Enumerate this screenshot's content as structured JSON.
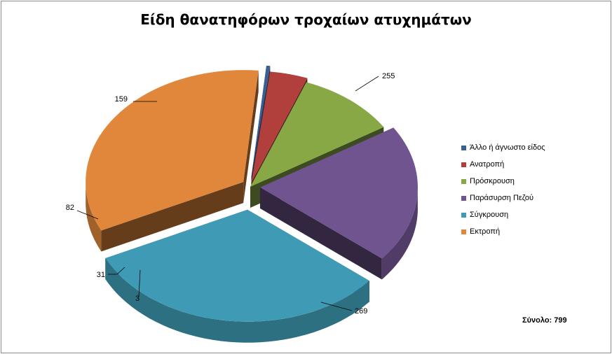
{
  "chart_data": {
    "type": "pie",
    "title": "Είδη θανατηφόρων τροχαίων ατυχημάτων",
    "categories": [
      "Άλλο ή άγνωστο είδος",
      "Ανατροπή",
      "Πρόσκρουση",
      "Παράσυρση Πεζού",
      "Σύγκρουση",
      "Εκτροπή"
    ],
    "values": [
      3,
      31,
      82,
      159,
      255,
      269
    ],
    "colors": [
      "#3b5f92",
      "#b1403d",
      "#88a846",
      "#6f548f",
      "#3f9bb5",
      "#e0873b"
    ],
    "labels": [
      "3",
      "31",
      "82",
      "159",
      "255",
      "269"
    ],
    "legend_placement": "right",
    "three_d": true,
    "exploded": true
  },
  "total_label": "Σύνολο: 799"
}
